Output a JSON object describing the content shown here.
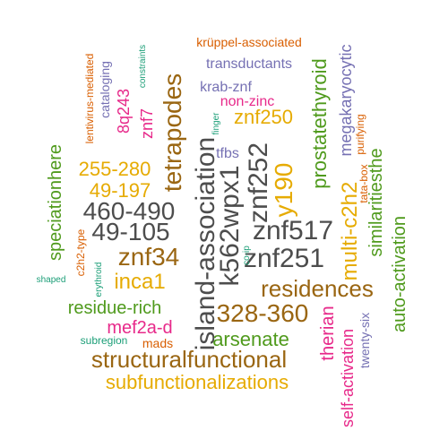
{
  "colors": {
    "green": "#4f9a1c",
    "brown": "#9a6612",
    "orange": "#d95f02",
    "purple": "#7570b3",
    "magenta": "#e7298a",
    "gray": "#4d4d4d",
    "gold": "#e6ab02",
    "teal": "#1b9e77"
  },
  "words": [
    {
      "text": "krüppel-associated",
      "color": "orange"
    },
    {
      "text": "transductants",
      "color": "purple"
    },
    {
      "text": "lentivirus-mediated",
      "color": "orange"
    },
    {
      "text": "constraints",
      "color": "teal"
    },
    {
      "text": "cataloging",
      "color": "purple"
    },
    {
      "text": "8q243",
      "color": "magenta"
    },
    {
      "text": "znf7",
      "color": "magenta"
    },
    {
      "text": "tetrapodes",
      "color": "brown"
    },
    {
      "text": "krab-znf",
      "color": "purple"
    },
    {
      "text": "non-zinc",
      "color": "magenta"
    },
    {
      "text": "znf250",
      "color": "gold"
    },
    {
      "text": "finger",
      "color": "teal"
    },
    {
      "text": "prostatethyroid",
      "color": "green"
    },
    {
      "text": "megakaryocytic",
      "color": "purple"
    },
    {
      "text": "purifying",
      "color": "orange"
    },
    {
      "text": "tata-box",
      "color": "orange"
    },
    {
      "text": "tfbs",
      "color": "purple"
    },
    {
      "text": "255-280",
      "color": "gold"
    },
    {
      "text": "49-197",
      "color": "gold"
    },
    {
      "text": "460-490",
      "color": "gray"
    },
    {
      "text": "49-105",
      "color": "gray"
    },
    {
      "text": "island-association",
      "color": "gray"
    },
    {
      "text": "k562wpx1",
      "color": "gray"
    },
    {
      "text": "znf252",
      "color": "gray"
    },
    {
      "text": "y190",
      "color": "gold"
    },
    {
      "text": "znf517",
      "color": "gray"
    },
    {
      "text": "znf251",
      "color": "gray"
    },
    {
      "text": "speciationhere",
      "color": "green"
    },
    {
      "text": "c2h2-type",
      "color": "orange"
    },
    {
      "text": "znf34",
      "color": "brown"
    },
    {
      "text": "inca1",
      "color": "gold"
    },
    {
      "text": "multi-c2h2",
      "color": "gold"
    },
    {
      "text": "similaritiesthe",
      "color": "green"
    },
    {
      "text": "auto-activation",
      "color": "green"
    },
    {
      "text": "shaped",
      "color": "teal"
    },
    {
      "text": "erythroid",
      "color": "teal"
    },
    {
      "text": "co-ip",
      "color": "teal"
    },
    {
      "text": "residences",
      "color": "brown"
    },
    {
      "text": "residue-rich",
      "color": "green"
    },
    {
      "text": "328-360",
      "color": "brown"
    },
    {
      "text": "mef2a-d",
      "color": "magenta"
    },
    {
      "text": "therian",
      "color": "magenta"
    },
    {
      "text": "twenty-six",
      "color": "purple"
    },
    {
      "text": "arsenate",
      "color": "green"
    },
    {
      "text": "subregion",
      "color": "teal"
    },
    {
      "text": "mads",
      "color": "orange"
    },
    {
      "text": "structuralfunctional",
      "color": "brown"
    },
    {
      "text": "self-activation",
      "color": "magenta"
    },
    {
      "text": "subfunctionalizations",
      "color": "gold"
    }
  ]
}
